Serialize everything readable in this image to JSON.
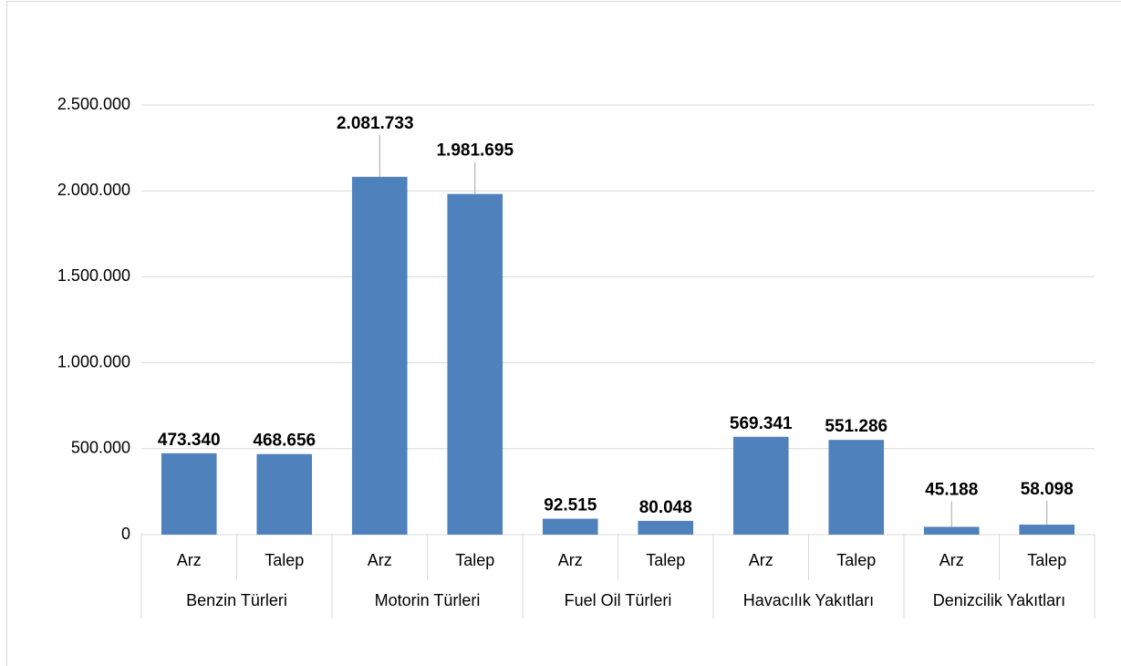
{
  "chart_data": {
    "type": "bar",
    "categories": [
      "Arz",
      "Talep",
      "Arz",
      "Talep",
      "Arz",
      "Talep",
      "Arz",
      "Talep",
      "Arz",
      "Talep"
    ],
    "groups": [
      "Benzin Türleri",
      "Motorin Türleri",
      "Fuel Oil Türleri",
      "Havacılık Yakıtları",
      "Denizcilik Yakıtları"
    ],
    "values": [
      473340,
      468656,
      2081733,
      1981695,
      92515,
      80048,
      569341,
      551286,
      45188,
      58098
    ],
    "value_labels": [
      "473.340",
      "468.656",
      "2.081.733",
      "1.981.695",
      "92.515",
      "80.048",
      "569.341",
      "551.286",
      "45.188",
      "58.098"
    ],
    "color": "#4f81bd",
    "ylim": [
      0,
      2500000
    ],
    "yticks": [
      0,
      {
        "value": 500000,
        "label": "500.000"
      },
      {
        "value": 1000000,
        "label": "1.000.000"
      },
      {
        "value": 1500000,
        "label": "1.500.000"
      },
      {
        "value": 2000000,
        "label": "2.000.000"
      },
      {
        "value": 2500000,
        "label": "2.500.000"
      }
    ],
    "grid": true
  }
}
